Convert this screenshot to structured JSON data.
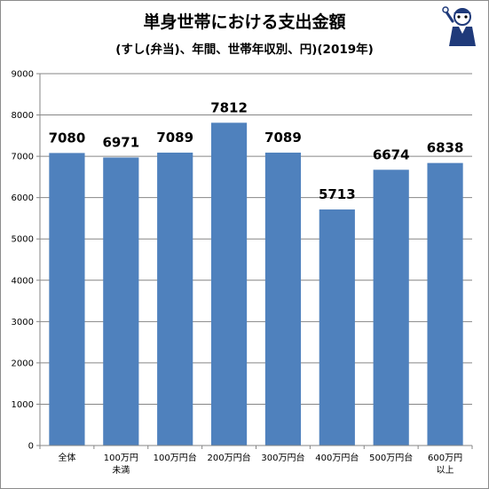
{
  "chart_data": {
    "type": "bar",
    "title": "単身世帯における支出金額",
    "subtitle": "(すし(弁当)、年間、世帯年収別、円)(2019年)",
    "categories": [
      [
        "全体"
      ],
      [
        "100万円",
        "未満"
      ],
      [
        "100万円台"
      ],
      [
        "200万円台"
      ],
      [
        "300万円台"
      ],
      [
        "400万円台"
      ],
      [
        "500万円台"
      ],
      [
        "600万円",
        "以上"
      ]
    ],
    "values": [
      7080,
      6971,
      7089,
      7812,
      7089,
      5713,
      6674,
      6838
    ],
    "ylim": [
      0,
      9000
    ],
    "yticks": [
      0,
      1000,
      2000,
      3000,
      4000,
      5000,
      6000,
      7000,
      8000,
      9000
    ],
    "grid": true,
    "legend": "none",
    "colors": {
      "bar": "#4f81bd",
      "grid": "#868686",
      "axis": "#868686"
    }
  },
  "mascot_icon": "cartoon-mascot-logo-icon"
}
